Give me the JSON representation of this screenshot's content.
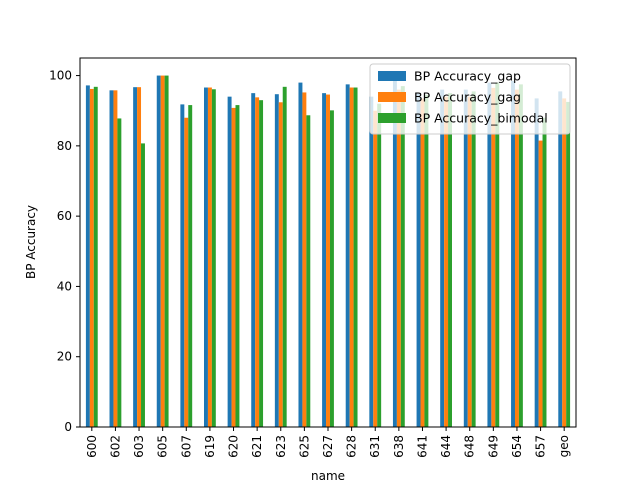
{
  "chart_data": {
    "type": "bar",
    "xlabel": "name",
    "ylabel": "BP Accuracy",
    "ylim": [
      0,
      105
    ],
    "yticks": [
      0,
      20,
      40,
      60,
      80,
      100
    ],
    "grid": false,
    "legend_position": "top-right",
    "categories": [
      "600",
      "602",
      "603",
      "605",
      "607",
      "619",
      "620",
      "621",
      "623",
      "625",
      "627",
      "628",
      "631",
      "638",
      "641",
      "644",
      "648",
      "649",
      "654",
      "657",
      "geo"
    ],
    "series": [
      {
        "name": "BP Accuracy_gap",
        "color": "#1f77b4",
        "values": [
          97.2,
          95.8,
          96.7,
          100,
          91.8,
          96.6,
          94.0,
          95.0,
          94.7,
          98.0,
          95.0,
          97.5,
          94.0,
          98.5,
          95.0,
          96.0,
          96.0,
          98.0,
          98.5,
          93.5,
          95.5
        ]
      },
      {
        "name": "BP Accuracy_gag",
        "color": "#ff7f0e",
        "values": [
          96.2,
          95.8,
          96.7,
          100,
          88.0,
          96.6,
          90.8,
          93.8,
          92.4,
          95.2,
          94.6,
          96.6,
          90.0,
          96.0,
          93.5,
          94.0,
          94.0,
          96.5,
          96.0,
          81.5,
          93.5
        ]
      },
      {
        "name": "BP Accuracy_bimodal",
        "color": "#2ca02c",
        "values": [
          96.8,
          87.8,
          80.7,
          100,
          91.6,
          96.1,
          91.6,
          93.0,
          96.8,
          88.7,
          90.1,
          96.6,
          92.0,
          97.0,
          94.5,
          95.0,
          95.5,
          98.0,
          97.5,
          88.0,
          92.5
        ]
      }
    ]
  }
}
